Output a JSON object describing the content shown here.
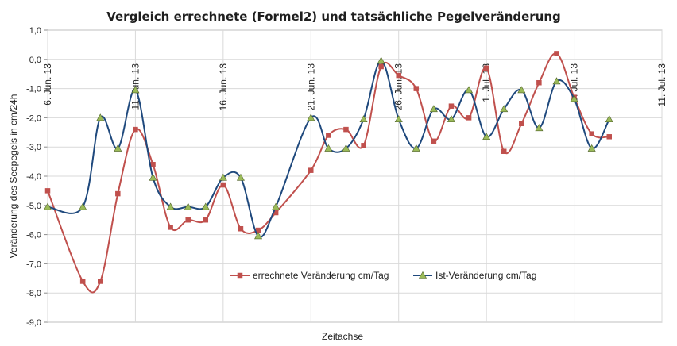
{
  "chart_data": {
    "type": "line",
    "title": "Vergleich errechnete (Formel2)  und tatsächliche  Pegelveränderung",
    "xlabel": "Zeitachse",
    "ylabel": "Veränderung  des Seepegels in cm/24h",
    "ylim": [
      -9,
      1
    ],
    "yticks": [
      "1,0",
      "0,0",
      "-1,0",
      "-2,0",
      "-3,0",
      "-4,0",
      "-5,0",
      "-6,0",
      "-7,0",
      "-8,0",
      "-9,0"
    ],
    "xlim": [
      "2013-06-06",
      "2013-07-11"
    ],
    "xticks": [
      {
        "date": "2013-06-06",
        "label": "6. Jun. 13"
      },
      {
        "date": "2013-06-11",
        "label": "11. Jun. 13"
      },
      {
        "date": "2013-06-16",
        "label": "16. Jun. 13"
      },
      {
        "date": "2013-06-21",
        "label": "21. Jun. 13"
      },
      {
        "date": "2013-06-26",
        "label": "26. Jun. 13"
      },
      {
        "date": "2013-07-01",
        "label": "1. Jul. 13"
      },
      {
        "date": "2013-07-06",
        "label": "6. Jul. 13"
      },
      {
        "date": "2013-07-11",
        "label": "11. Jul. 13"
      }
    ],
    "grid": true,
    "legend": "center-bottom",
    "series": [
      {
        "name": "errechnete Veränderung cm/Tag",
        "color": "#c0504d",
        "marker": "square",
        "points": [
          {
            "date": "2013-06-06",
            "y": -4.5
          },
          {
            "date": "2013-06-08",
            "y": -7.6
          },
          {
            "date": "2013-06-09",
            "y": -7.6
          },
          {
            "date": "2013-06-10",
            "y": -4.6
          },
          {
            "date": "2013-06-11",
            "y": -2.4
          },
          {
            "date": "2013-06-12",
            "y": -3.6
          },
          {
            "date": "2013-06-13",
            "y": -5.75
          },
          {
            "date": "2013-06-14",
            "y": -5.5
          },
          {
            "date": "2013-06-15",
            "y": -5.5
          },
          {
            "date": "2013-06-16",
            "y": -4.3
          },
          {
            "date": "2013-06-17",
            "y": -5.8
          },
          {
            "date": "2013-06-18",
            "y": -5.85
          },
          {
            "date": "2013-06-19",
            "y": -5.25
          },
          {
            "date": "2013-06-21",
            "y": -3.8
          },
          {
            "date": "2013-06-22",
            "y": -2.6
          },
          {
            "date": "2013-06-23",
            "y": -2.4
          },
          {
            "date": "2013-06-24",
            "y": -2.95
          },
          {
            "date": "2013-06-25",
            "y": -0.25
          },
          {
            "date": "2013-06-26",
            "y": -0.55
          },
          {
            "date": "2013-06-27",
            "y": -1.0
          },
          {
            "date": "2013-06-28",
            "y": -2.8
          },
          {
            "date": "2013-06-29",
            "y": -1.6
          },
          {
            "date": "2013-06-30",
            "y": -2.0
          },
          {
            "date": "2013-07-01",
            "y": -0.3
          },
          {
            "date": "2013-07-02",
            "y": -3.15
          },
          {
            "date": "2013-07-03",
            "y": -2.2
          },
          {
            "date": "2013-07-04",
            "y": -0.8
          },
          {
            "date": "2013-07-05",
            "y": 0.2
          },
          {
            "date": "2013-07-06",
            "y": -1.3
          },
          {
            "date": "2013-07-07",
            "y": -2.55
          },
          {
            "date": "2013-07-08",
            "y": -2.65
          }
        ]
      },
      {
        "name": "Ist-Veränderung cm/Tag",
        "color": "#1f497d",
        "marker": "triangle",
        "marker_color": "#9bbb59",
        "points": [
          {
            "date": "2013-06-06",
            "y": -5.05
          },
          {
            "date": "2013-06-08",
            "y": -5.05
          },
          {
            "date": "2013-06-09",
            "y": -2.0
          },
          {
            "date": "2013-06-10",
            "y": -3.05
          },
          {
            "date": "2013-06-11",
            "y": -1.05
          },
          {
            "date": "2013-06-12",
            "y": -4.05
          },
          {
            "date": "2013-06-13",
            "y": -5.05
          },
          {
            "date": "2013-06-14",
            "y": -5.05
          },
          {
            "date": "2013-06-15",
            "y": -5.05
          },
          {
            "date": "2013-06-16",
            "y": -4.05
          },
          {
            "date": "2013-06-17",
            "y": -4.05
          },
          {
            "date": "2013-06-18",
            "y": -6.05
          },
          {
            "date": "2013-06-19",
            "y": -5.05
          },
          {
            "date": "2013-06-21",
            "y": -2.0
          },
          {
            "date": "2013-06-22",
            "y": -3.05
          },
          {
            "date": "2013-06-23",
            "y": -3.05
          },
          {
            "date": "2013-06-24",
            "y": -2.05
          },
          {
            "date": "2013-06-25",
            "y": -0.05
          },
          {
            "date": "2013-06-26",
            "y": -2.05
          },
          {
            "date": "2013-06-27",
            "y": -3.05
          },
          {
            "date": "2013-06-28",
            "y": -1.7
          },
          {
            "date": "2013-06-29",
            "y": -2.05
          },
          {
            "date": "2013-06-30",
            "y": -1.05
          },
          {
            "date": "2013-07-01",
            "y": -2.65
          },
          {
            "date": "2013-07-02",
            "y": -1.7
          },
          {
            "date": "2013-07-03",
            "y": -1.05
          },
          {
            "date": "2013-07-04",
            "y": -2.35
          },
          {
            "date": "2013-07-05",
            "y": -0.75
          },
          {
            "date": "2013-07-06",
            "y": -1.35
          },
          {
            "date": "2013-07-07",
            "y": -3.05
          },
          {
            "date": "2013-07-08",
            "y": -2.05
          }
        ]
      }
    ]
  }
}
